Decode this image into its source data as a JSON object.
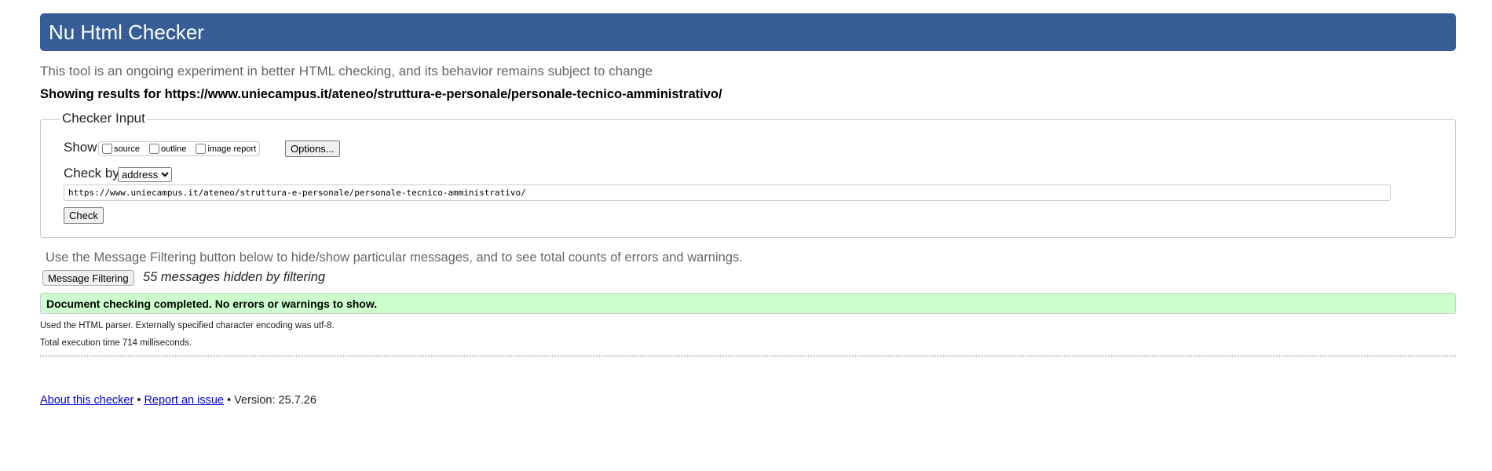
{
  "header": {
    "title": "Nu Html Checker"
  },
  "intro": "This tool is an ongoing experiment in better HTML checking, and its behavior remains subject to change",
  "showing_results": "Showing results for https://www.uniecampus.it/ateneo/struttura-e-personale/personale-tecnico-amministrativo/",
  "checker_input": {
    "legend": "Checker Input",
    "show_label": "Show",
    "show_options": [
      {
        "label": "source",
        "checked": false
      },
      {
        "label": "outline",
        "checked": false
      },
      {
        "label": "image report",
        "checked": false
      }
    ],
    "options_button": "Options...",
    "check_by_label": "Check by",
    "check_by_value": "address",
    "url_value": "https://www.uniecampus.it/ateneo/struttura-e-personale/personale-tecnico-amministrativo/",
    "check_button": "Check"
  },
  "filtering": {
    "note": "Use the Message Filtering button below to hide/show particular messages, and to see total counts of errors and warnings.",
    "button": "Message Filtering",
    "hidden_count": "55 messages hidden by filtering"
  },
  "result": {
    "success": "Document checking completed. No errors or warnings to show.",
    "success_color": "#ccffcc"
  },
  "details": {
    "parser": "Used the HTML parser. Externally specified character encoding was utf-8.",
    "exec_time": "Total execution time 714 milliseconds."
  },
  "footer": {
    "about": "About this checker",
    "sep": "•",
    "report": "Report an issue",
    "version": "• Version: 25.7.26"
  },
  "colors": {
    "header_bg": "#365d95",
    "link": "#0000cc"
  }
}
